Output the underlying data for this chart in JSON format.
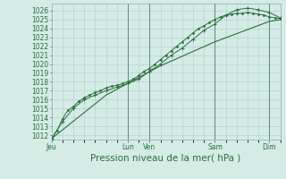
{
  "bg_color": "#d4ebe6",
  "grid_color": "#b0d0ca",
  "line_color": "#2d6e3e",
  "marker_color": "#2d6e3e",
  "ylabel_ticks": [
    1012,
    1013,
    1014,
    1015,
    1016,
    1017,
    1018,
    1019,
    1020,
    1021,
    1022,
    1023,
    1024,
    1025,
    1026
  ],
  "ylim": [
    1011.5,
    1026.8
  ],
  "xlabel": "Pression niveau de la mer( hPa )",
  "xlabel_fontsize": 7.5,
  "tick_fontsize": 5.5,
  "day_labels": [
    "Jeu",
    "Lun",
    "Ven",
    "Sam",
    "Dim"
  ],
  "day_positions": [
    0,
    84,
    108,
    180,
    240
  ],
  "total_hours": 252,
  "series1_x": [
    0,
    6,
    12,
    18,
    24,
    30,
    36,
    42,
    48,
    54,
    60,
    66,
    72,
    78,
    84,
    90,
    96,
    102,
    108,
    114,
    120,
    126,
    132,
    138,
    144,
    150,
    156,
    162,
    168,
    174,
    180,
    186,
    192,
    198,
    204,
    210,
    216,
    222,
    228,
    234,
    240,
    246,
    252
  ],
  "series1_y": [
    1011.6,
    1012.5,
    1013.8,
    1014.8,
    1015.2,
    1015.8,
    1016.2,
    1016.5,
    1016.8,
    1017.0,
    1017.3,
    1017.5,
    1017.6,
    1017.8,
    1018.0,
    1018.3,
    1018.7,
    1019.2,
    1019.5,
    1020.0,
    1020.5,
    1021.0,
    1021.5,
    1022.0,
    1022.5,
    1023.0,
    1023.5,
    1024.0,
    1024.3,
    1024.7,
    1025.0,
    1025.3,
    1025.5,
    1025.6,
    1025.7,
    1025.7,
    1025.8,
    1025.7,
    1025.6,
    1025.5,
    1025.3,
    1025.2,
    1025.1
  ],
  "series2_x": [
    0,
    12,
    24,
    36,
    48,
    60,
    72,
    84,
    96,
    108,
    120,
    132,
    144,
    156,
    168,
    180,
    192,
    204,
    216,
    228,
    240,
    252
  ],
  "series2_y": [
    1011.6,
    1013.5,
    1015.0,
    1016.0,
    1016.5,
    1017.0,
    1017.4,
    1017.8,
    1018.3,
    1019.2,
    1020.0,
    1021.0,
    1021.8,
    1022.8,
    1023.8,
    1024.5,
    1025.5,
    1026.1,
    1026.3,
    1026.1,
    1025.8,
    1025.2
  ],
  "series3_x": [
    0,
    60,
    120,
    180,
    240,
    252
  ],
  "series3_y": [
    1011.6,
    1016.5,
    1019.8,
    1022.5,
    1024.8,
    1025.0
  ]
}
